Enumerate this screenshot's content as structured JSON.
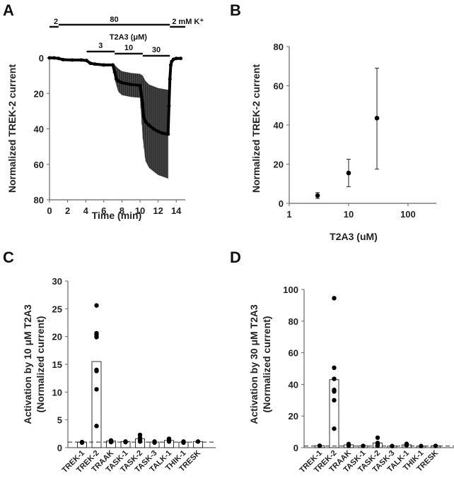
{
  "chart_data": [
    {
      "panel": "A",
      "type": "line",
      "xlabel": "Time (min)",
      "ylabel": "Normalized TREK-2 current",
      "xlim": [
        0,
        15
      ],
      "ylim": [
        80,
        0
      ],
      "y_inverted": true,
      "xticks": [
        "0",
        "2",
        "4",
        "6",
        "8",
        "10",
        "12",
        "14"
      ],
      "yticks": [
        "0",
        "20",
        "40",
        "60",
        "80"
      ],
      "protocol_k": {
        "label_suffix": "2 mM K+",
        "segments": [
          {
            "label": "2",
            "start": 0,
            "end": 1
          },
          {
            "label": "80",
            "start": 1,
            "end": 13.3
          },
          {
            "label": "2 mM K⁺",
            "start": 13.3,
            "end": 15
          }
        ]
      },
      "protocol_drug": {
        "title": "T2A3 (μM)",
        "segments": [
          {
            "label": "3",
            "start": 4.1,
            "end": 7.2
          },
          {
            "label": "10",
            "start": 7.2,
            "end": 10.3
          },
          {
            "label": "30",
            "start": 10.3,
            "end": 13.3
          }
        ]
      },
      "series": [
        {
          "name": "mean",
          "x": [
            0,
            0.5,
            1.0,
            1.5,
            2.5,
            3.5,
            4.1,
            4.5,
            5.0,
            6.0,
            7.0,
            7.2,
            7.4,
            7.6,
            8.0,
            9.0,
            10.0,
            10.3,
            10.4,
            10.6,
            11.0,
            11.5,
            12.0,
            12.5,
            13.1,
            13.2,
            13.3,
            13.4,
            13.5,
            13.7,
            14.0,
            14.5
          ],
          "y": [
            0,
            0,
            0.3,
            1.0,
            1.2,
            1.2,
            1.5,
            3.0,
            3.5,
            4.0,
            4.0,
            8,
            12,
            13,
            14,
            15,
            15.5,
            26,
            33,
            36,
            38,
            40,
            41.5,
            42.5,
            43,
            27,
            12,
            4,
            2,
            0.8,
            0.3,
            0.3
          ]
        },
        {
          "name": "mean_plus_sem",
          "x": [
            7.2,
            7.6,
            8.0,
            9.0,
            10.0,
            10.3,
            10.6,
            11.0,
            12.0,
            13.1
          ],
          "y": [
            12,
            19,
            21,
            22,
            22.5,
            45,
            58,
            62,
            66,
            68
          ]
        },
        {
          "name": "mean_minus_sem",
          "x": [
            7.2,
            7.6,
            8.0,
            9.0,
            10.0,
            10.3,
            10.6,
            11.0,
            12.0,
            13.1
          ],
          "y": [
            4,
            6,
            7.5,
            8.5,
            9,
            10,
            13,
            15,
            17,
            18
          ]
        }
      ]
    },
    {
      "panel": "B",
      "type": "scatter",
      "xlabel": "T2A3 (uM)",
      "ylabel": "Normalized TREK-2 current",
      "xscale": "log",
      "xlim": [
        1,
        300
      ],
      "ylim": [
        0,
        80
      ],
      "xticks": [
        "1",
        "10",
        "100"
      ],
      "yticks": [
        "0",
        "20",
        "40",
        "60",
        "80"
      ],
      "points": [
        {
          "x": 3,
          "y": 4,
          "err_low": 2.5,
          "err_high": 5.5
        },
        {
          "x": 10,
          "y": 15.5,
          "err_low": 8.5,
          "err_high": 22.5
        },
        {
          "x": 30,
          "y": 43.5,
          "err_low": 17.5,
          "err_high": 69
        }
      ]
    },
    {
      "panel": "C",
      "type": "bar",
      "ylabel": "Activation by 10 μM T2A3\n(Normalized current)",
      "ylabel_lines": [
        "Activation by 10 μM T2A3",
        "(Normalized current)"
      ],
      "ylim": [
        0,
        30
      ],
      "yticks": [
        "0",
        "5",
        "10",
        "15",
        "20",
        "25",
        "30"
      ],
      "reference_line": 1,
      "categories": [
        "TREK-1",
        "TREK-2",
        "TRAAK",
        "TASK-1",
        "TASK-2",
        "TASK-3",
        "TALK-1",
        "THIK-1",
        "TRESK"
      ],
      "values": [
        1.0,
        15.5,
        1.2,
        1.1,
        1.6,
        1.0,
        1.3,
        1.0,
        1.1
      ],
      "points": [
        [
          1.0,
          0.9
        ],
        [
          25.6,
          20.6,
          20.3,
          19.9,
          14.0,
          13.8,
          10.5,
          3.9
        ],
        [
          1.3,
          1.0
        ],
        [
          1.1,
          1.0
        ],
        [
          2.3,
          1.8,
          1.3,
          1.1
        ],
        [
          1.1,
          0.9
        ],
        [
          1.6,
          1.4,
          1.1
        ],
        [
          1.1,
          0.9
        ],
        [
          1.1
        ]
      ]
    },
    {
      "panel": "D",
      "type": "bar",
      "ylabel": "Activation by 30 μM T2A3\n(Normalized current)",
      "ylabel_lines": [
        "Activation by 30 μM T2A3",
        "(Normalized current)"
      ],
      "ylim": [
        0,
        100
      ],
      "yticks": [
        "0",
        "20",
        "40",
        "60",
        "80",
        "100"
      ],
      "reference_line": 1,
      "categories": [
        "TREK-1",
        "TREK-2",
        "TRAAK",
        "TASK-1",
        "TASK-2",
        "TASK-3",
        "TALK-1",
        "THIK-1",
        "TRESK"
      ],
      "values": [
        1.2,
        43,
        1.8,
        1.1,
        3.0,
        1.0,
        1.8,
        0.9,
        1.1
      ],
      "points": [
        [
          1.2
        ],
        [
          94.5,
          50.5,
          43.5,
          36.5,
          35.5,
          30,
          12
        ],
        [
          2.3,
          1.2
        ],
        [
          1.1
        ],
        [
          6.3,
          3.0,
          2.5,
          1.2
        ],
        [
          1.0
        ],
        [
          2.4,
          1.5
        ],
        [
          1.0
        ],
        [
          1.1
        ]
      ]
    }
  ]
}
